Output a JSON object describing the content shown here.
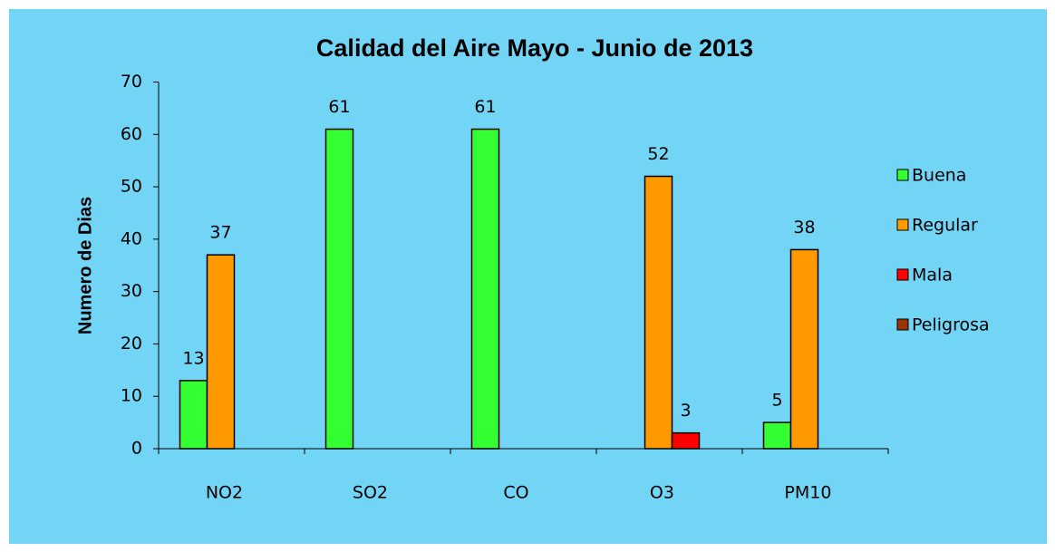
{
  "chart_data": {
    "type": "bar",
    "title": "Calidad del Aire  Mayo - Junio de 2013",
    "y_label": "Numero de Dias",
    "categories": [
      "NO2",
      "SO2",
      "CO",
      "O3",
      "PM10"
    ],
    "series": [
      {
        "name": "Buena",
        "color": "#33ff33",
        "values": [
          13,
          61,
          61,
          null,
          5
        ]
      },
      {
        "name": "Regular",
        "color": "#ff9900",
        "values": [
          37,
          null,
          null,
          52,
          38
        ]
      },
      {
        "name": "Mala",
        "color": "#ff0000",
        "values": [
          null,
          null,
          null,
          3,
          null
        ]
      },
      {
        "name": "Peligrosa",
        "color": "#993300",
        "values": [
          null,
          null,
          null,
          null,
          null
        ]
      }
    ],
    "ylim": [
      0,
      70
    ],
    "yticks": [
      0,
      10,
      20,
      30,
      40,
      50,
      60,
      70
    ],
    "legend": "right"
  }
}
